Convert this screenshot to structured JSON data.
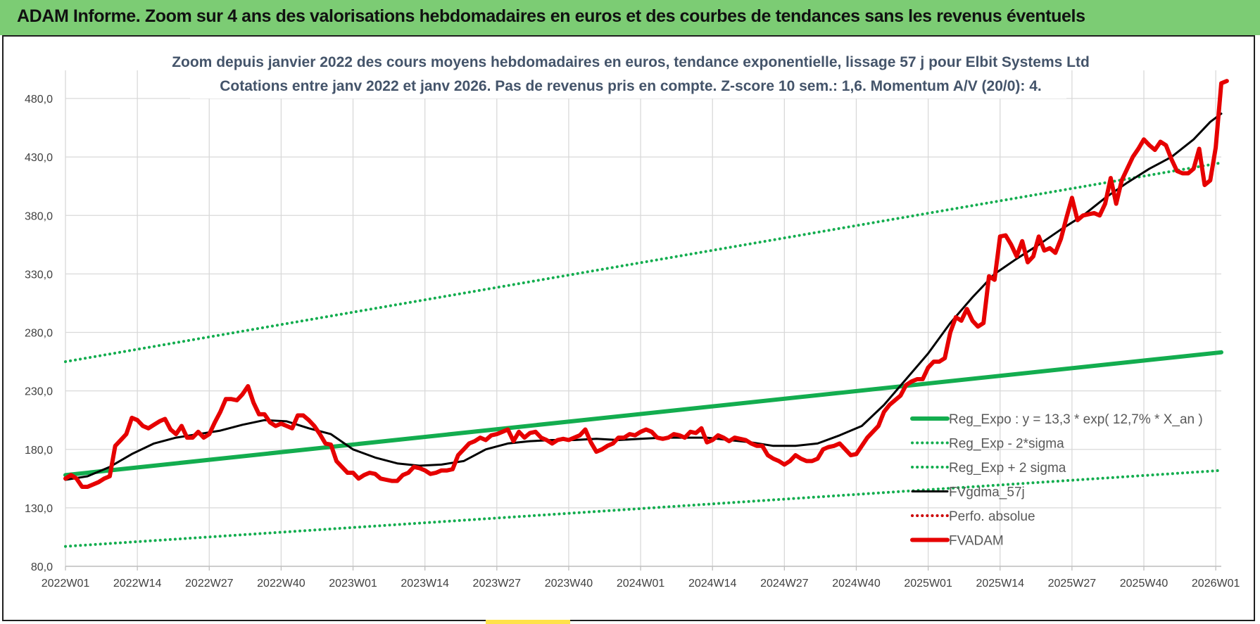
{
  "banner": {
    "title": "ADAM Informe. Zoom sur 4 ans des valorisations hebdomadaires en euros et des courbes de tendances sans les revenus éventuels",
    "color": "#7ccc74"
  },
  "chart_data": {
    "type": "line",
    "title": "Zoom depuis janvier 2022 des cours moyens hebdomadaires en euros, tendance exponentielle, lissage 57 j pour Elbit Systems Ltd",
    "subtitle": "Cotations entre janv 2022 et janv 2026. Pas de revenus pris en compte. Z-score 10 sem.: 1,6. Momentum A/V (20/0): 4.",
    "xlabel": "",
    "ylabel": "",
    "x_ticks": [
      "2022W01",
      "2022W14",
      "2022W27",
      "2022W40",
      "2023W01",
      "2023W14",
      "2023W27",
      "2023W40",
      "2024W01",
      "2024W14",
      "2024W27",
      "2024W40",
      "2025W01",
      "2025W14",
      "2025W27",
      "2025W40",
      "2026W01"
    ],
    "y_ticks": [
      "80,0",
      "130,0",
      "180,0",
      "230,0",
      "280,0",
      "330,0",
      "380,0",
      "430,0",
      "480,0"
    ],
    "ylim": [
      80,
      500
    ],
    "x_range_weeks": [
      0,
      209
    ],
    "grid": true,
    "legend_position": "bottom-right",
    "series": [
      {
        "name": "Reg_Expo : y = 13,3 * exp( 12,7% *  X_an )",
        "style": "solid",
        "color": "#13ad4f",
        "width": 6,
        "points": [
          [
            0,
            158
          ],
          [
            209,
            263
          ]
        ]
      },
      {
        "name": "Reg_Exp - 2*sigma",
        "style": "dotted",
        "color": "#13ad4f",
        "width": 4,
        "points": [
          [
            0,
            97
          ],
          [
            209,
            162
          ]
        ]
      },
      {
        "name": "Reg_Exp + 2 sigma",
        "style": "dotted",
        "color": "#13ad4f",
        "width": 4,
        "points": [
          [
            0,
            255
          ],
          [
            209,
            425
          ]
        ]
      },
      {
        "name": "FVgdma_57j",
        "style": "solid",
        "color": "#000000",
        "width": 3,
        "points": [
          [
            0,
            154
          ],
          [
            4,
            157
          ],
          [
            8,
            165
          ],
          [
            12,
            176
          ],
          [
            16,
            185
          ],
          [
            20,
            190
          ],
          [
            24,
            193
          ],
          [
            28,
            196
          ],
          [
            32,
            201
          ],
          [
            36,
            205
          ],
          [
            40,
            204
          ],
          [
            44,
            198
          ],
          [
            48,
            193
          ],
          [
            52,
            180
          ],
          [
            56,
            173
          ],
          [
            60,
            168
          ],
          [
            64,
            166
          ],
          [
            68,
            167
          ],
          [
            72,
            170
          ],
          [
            76,
            180
          ],
          [
            80,
            185
          ],
          [
            84,
            187
          ],
          [
            88,
            188
          ],
          [
            92,
            188
          ],
          [
            96,
            189
          ],
          [
            100,
            188
          ],
          [
            104,
            189
          ],
          [
            108,
            190
          ],
          [
            112,
            190
          ],
          [
            116,
            190
          ],
          [
            120,
            188
          ],
          [
            124,
            186
          ],
          [
            128,
            183
          ],
          [
            132,
            183
          ],
          [
            136,
            185
          ],
          [
            140,
            192
          ],
          [
            144,
            200
          ],
          [
            148,
            218
          ],
          [
            152,
            240
          ],
          [
            156,
            262
          ],
          [
            160,
            288
          ],
          [
            164,
            310
          ],
          [
            168,
            330
          ],
          [
            172,
            343
          ],
          [
            176,
            355
          ],
          [
            180,
            368
          ],
          [
            184,
            380
          ],
          [
            188,
            395
          ],
          [
            192,
            408
          ],
          [
            196,
            420
          ],
          [
            200,
            430
          ],
          [
            204,
            445
          ],
          [
            207,
            460
          ],
          [
            209,
            467
          ]
        ]
      },
      {
        "name": "Perfo. absolue",
        "style": "dotted",
        "color": "#cc0000",
        "width": 4,
        "points": []
      },
      {
        "name": "FVADAM",
        "style": "solid",
        "color": "#e60000",
        "width": 6,
        "points": [
          [
            0,
            155
          ],
          [
            1,
            158
          ],
          [
            2,
            155
          ],
          [
            3,
            148
          ],
          [
            4,
            148
          ],
          [
            5,
            150
          ],
          [
            6,
            152
          ],
          [
            7,
            155
          ],
          [
            8,
            157
          ],
          [
            9,
            183
          ],
          [
            10,
            188
          ],
          [
            11,
            193
          ],
          [
            12,
            207
          ],
          [
            13,
            205
          ],
          [
            14,
            200
          ],
          [
            15,
            198
          ],
          [
            16,
            201
          ],
          [
            17,
            204
          ],
          [
            18,
            206
          ],
          [
            19,
            197
          ],
          [
            20,
            193
          ],
          [
            21,
            200
          ],
          [
            22,
            190
          ],
          [
            23,
            190
          ],
          [
            24,
            195
          ],
          [
            25,
            190
          ],
          [
            26,
            193
          ],
          [
            27,
            203
          ],
          [
            28,
            212
          ],
          [
            29,
            223
          ],
          [
            30,
            223
          ],
          [
            31,
            222
          ],
          [
            32,
            227
          ],
          [
            33,
            234
          ],
          [
            34,
            220
          ],
          [
            35,
            210
          ],
          [
            36,
            210
          ],
          [
            37,
            203
          ],
          [
            38,
            200
          ],
          [
            39,
            202
          ],
          [
            40,
            200
          ],
          [
            41,
            198
          ],
          [
            42,
            209
          ],
          [
            43,
            209
          ],
          [
            44,
            205
          ],
          [
            45,
            200
          ],
          [
            46,
            193
          ],
          [
            47,
            185
          ],
          [
            48,
            184
          ],
          [
            49,
            170
          ],
          [
            50,
            165
          ],
          [
            51,
            160
          ],
          [
            52,
            160
          ],
          [
            53,
            155
          ],
          [
            54,
            158
          ],
          [
            55,
            160
          ],
          [
            56,
            159
          ],
          [
            57,
            155
          ],
          [
            58,
            154
          ],
          [
            59,
            153
          ],
          [
            60,
            153
          ],
          [
            61,
            158
          ],
          [
            62,
            160
          ],
          [
            63,
            165
          ],
          [
            64,
            164
          ],
          [
            65,
            162
          ],
          [
            66,
            159
          ],
          [
            67,
            160
          ],
          [
            68,
            162
          ],
          [
            69,
            162
          ],
          [
            70,
            163
          ],
          [
            71,
            175
          ],
          [
            72,
            180
          ],
          [
            73,
            185
          ],
          [
            74,
            187
          ],
          [
            75,
            190
          ],
          [
            76,
            188
          ],
          [
            77,
            192
          ],
          [
            78,
            193
          ],
          [
            79,
            195
          ],
          [
            80,
            197
          ],
          [
            81,
            187
          ],
          [
            82,
            195
          ],
          [
            83,
            190
          ],
          [
            84,
            194
          ],
          [
            85,
            195
          ],
          [
            86,
            190
          ],
          [
            87,
            188
          ],
          [
            88,
            185
          ],
          [
            89,
            188
          ],
          [
            90,
            189
          ],
          [
            91,
            188
          ],
          [
            92,
            190
          ],
          [
            93,
            192
          ],
          [
            94,
            197
          ],
          [
            95,
            186
          ],
          [
            96,
            178
          ],
          [
            97,
            180
          ],
          [
            98,
            183
          ],
          [
            99,
            185
          ],
          [
            100,
            190
          ],
          [
            101,
            190
          ],
          [
            102,
            193
          ],
          [
            103,
            192
          ],
          [
            104,
            195
          ],
          [
            105,
            197
          ],
          [
            106,
            195
          ],
          [
            107,
            190
          ],
          [
            108,
            189
          ],
          [
            109,
            190
          ],
          [
            110,
            193
          ],
          [
            111,
            192
          ],
          [
            112,
            190
          ],
          [
            113,
            195
          ],
          [
            114,
            194
          ],
          [
            115,
            198
          ],
          [
            116,
            186
          ],
          [
            117,
            188
          ],
          [
            118,
            192
          ],
          [
            119,
            190
          ],
          [
            120,
            187
          ],
          [
            121,
            190
          ],
          [
            122,
            189
          ],
          [
            123,
            188
          ],
          [
            124,
            185
          ],
          [
            125,
            183
          ],
          [
            126,
            183
          ],
          [
            127,
            175
          ],
          [
            128,
            172
          ],
          [
            129,
            170
          ],
          [
            130,
            167
          ],
          [
            131,
            170
          ],
          [
            132,
            175
          ],
          [
            133,
            172
          ],
          [
            134,
            170
          ],
          [
            135,
            170
          ],
          [
            136,
            172
          ],
          [
            137,
            180
          ],
          [
            138,
            182
          ],
          [
            139,
            183
          ],
          [
            140,
            185
          ],
          [
            141,
            180
          ],
          [
            142,
            175
          ],
          [
            143,
            176
          ],
          [
            144,
            183
          ],
          [
            145,
            190
          ],
          [
            146,
            195
          ],
          [
            147,
            200
          ],
          [
            148,
            212
          ],
          [
            149,
            218
          ],
          [
            150,
            222
          ],
          [
            151,
            226
          ],
          [
            152,
            235
          ],
          [
            153,
            238
          ],
          [
            154,
            240
          ],
          [
            155,
            240
          ],
          [
            156,
            250
          ],
          [
            157,
            255
          ],
          [
            158,
            255
          ],
          [
            159,
            258
          ],
          [
            160,
            280
          ],
          [
            161,
            293
          ],
          [
            162,
            290
          ],
          [
            163,
            300
          ],
          [
            164,
            290
          ],
          [
            165,
            285
          ],
          [
            166,
            288
          ],
          [
            167,
            328
          ],
          [
            168,
            325
          ],
          [
            169,
            362
          ],
          [
            170,
            363
          ],
          [
            171,
            355
          ],
          [
            172,
            345
          ],
          [
            173,
            358
          ],
          [
            174,
            340
          ],
          [
            175,
            345
          ],
          [
            176,
            362
          ],
          [
            177,
            350
          ],
          [
            178,
            352
          ],
          [
            179,
            348
          ],
          [
            180,
            360
          ],
          [
            181,
            378
          ],
          [
            182,
            395
          ],
          [
            183,
            376
          ],
          [
            184,
            380
          ],
          [
            185,
            381
          ],
          [
            186,
            382
          ],
          [
            187,
            380
          ],
          [
            188,
            390
          ],
          [
            189,
            412
          ],
          [
            190,
            390
          ],
          [
            191,
            410
          ],
          [
            192,
            420
          ],
          [
            193,
            430
          ],
          [
            194,
            437
          ],
          [
            195,
            445
          ],
          [
            196,
            440
          ],
          [
            197,
            436
          ],
          [
            198,
            443
          ],
          [
            199,
            440
          ],
          [
            200,
            428
          ],
          [
            201,
            418
          ],
          [
            202,
            416
          ],
          [
            203,
            416
          ],
          [
            204,
            420
          ],
          [
            205,
            437
          ],
          [
            206,
            406
          ],
          [
            207,
            410
          ],
          [
            208,
            438
          ],
          [
            209,
            493
          ],
          [
            210,
            495
          ]
        ]
      }
    ]
  }
}
